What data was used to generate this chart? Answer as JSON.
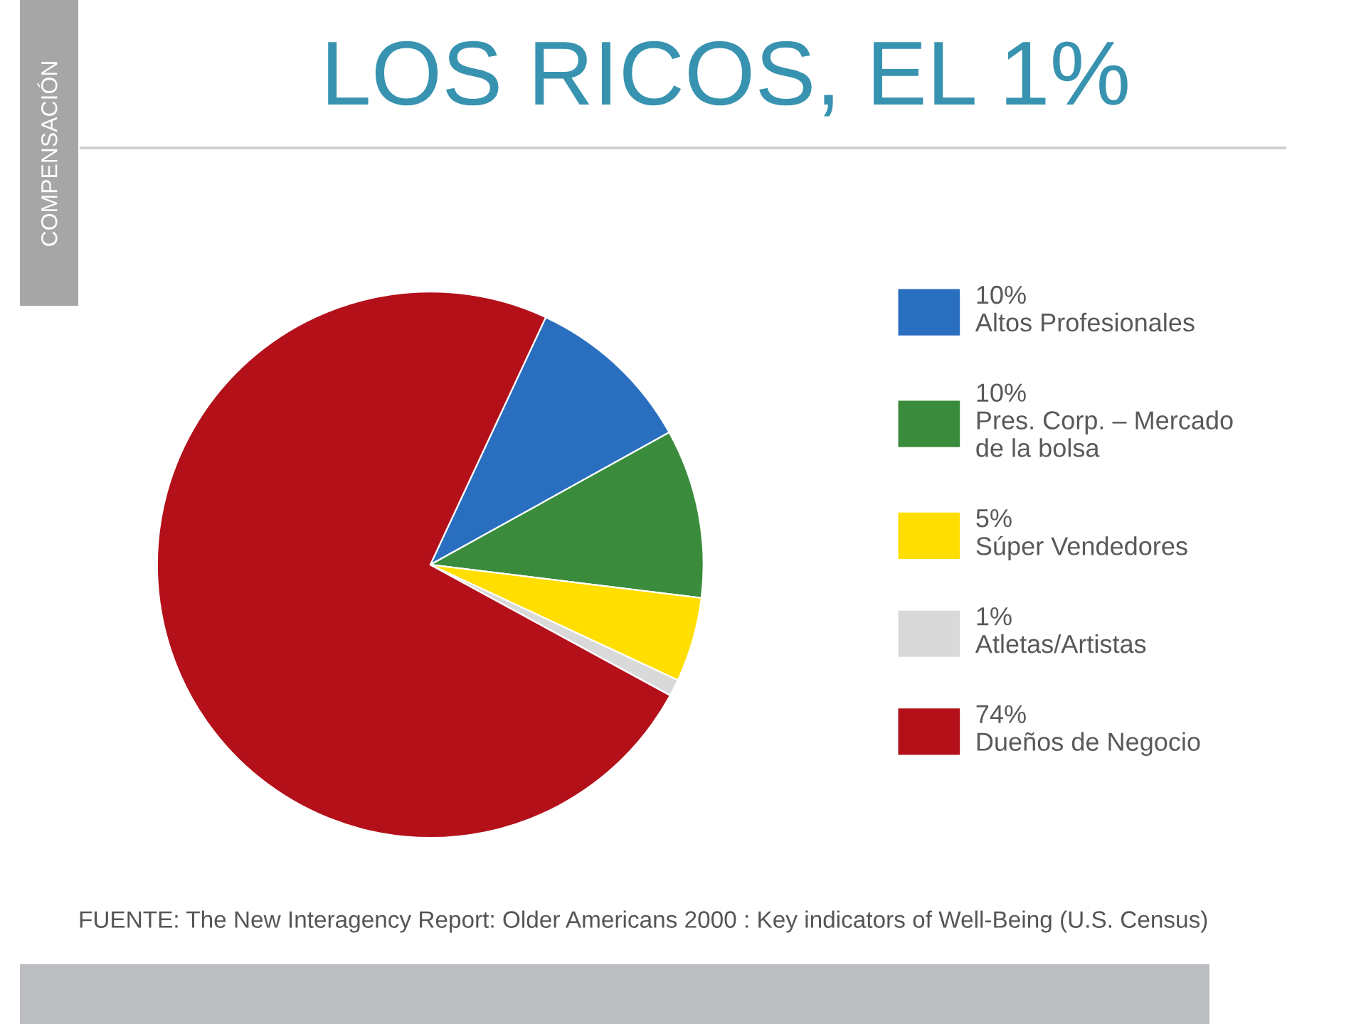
{
  "chart_data": {
    "type": "pie",
    "title": "LOS RICOS, EL 1%",
    "categories": [
      "Altos Profesionales",
      "Pres. Corp. – Mercado\nde la bolsa",
      "Súper Vendedores",
      "Atletas/Artistas",
      "Dueños de Negocio"
    ],
    "values": [
      10,
      10,
      5,
      1,
      74
    ],
    "colors": [
      "#2a6fbf",
      "#3a8c3c",
      "#ffde00",
      "#d9d9d9",
      "#b3101a"
    ],
    "value_labels": [
      "10%",
      "10%",
      "5%",
      "1%",
      "74%"
    ],
    "legend": "right",
    "annotations": [
      "COMPENSACIÓN",
      "FUENTE: The New Interagency Report: Older Americans 2000 : Key indicators of Well-Being (U.S. Census)"
    ]
  }
}
